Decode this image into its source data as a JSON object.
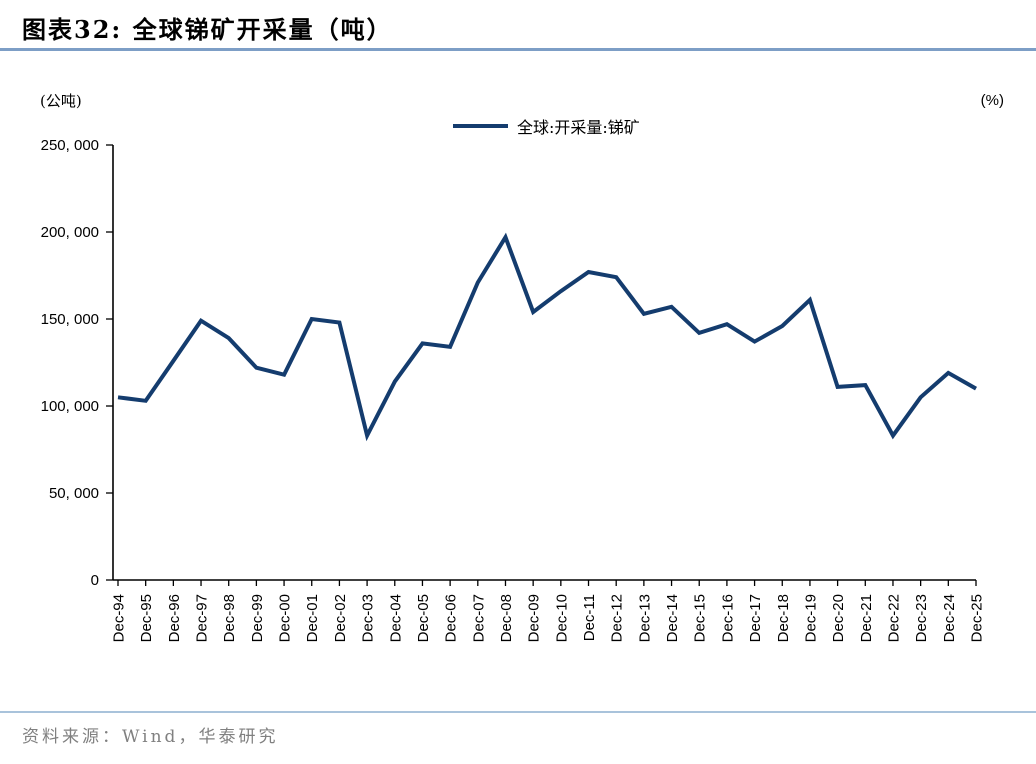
{
  "title": "图表32:  全球锑矿开采量（吨）",
  "axis_left_unit": "(公吨)",
  "axis_right_unit": "(%)",
  "legend_label": "全球:开采量:锑矿",
  "source": "资料来源：Wind，华泰研究",
  "colors": {
    "line": "#143C6E",
    "axis": "#000000",
    "title_rule": "#7D9EC6",
    "footer_rule": "#A9C3DB",
    "source_text": "#808080"
  },
  "chart_data": {
    "type": "line",
    "title": "全球锑矿开采量（吨）",
    "xlabel": "",
    "ylabel": "(公吨)",
    "x": [
      "Dec-94",
      "Dec-95",
      "Dec-96",
      "Dec-97",
      "Dec-98",
      "Dec-99",
      "Dec-00",
      "Dec-01",
      "Dec-02",
      "Dec-03",
      "Dec-04",
      "Dec-05",
      "Dec-06",
      "Dec-07",
      "Dec-08",
      "Dec-09",
      "Dec-10",
      "Dec-11",
      "Dec-12",
      "Dec-13",
      "Dec-14",
      "Dec-15",
      "Dec-16",
      "Dec-17",
      "Dec-18",
      "Dec-19",
      "Dec-20",
      "Dec-21",
      "Dec-22",
      "Dec-23",
      "Dec-24",
      "Dec-25"
    ],
    "series": [
      {
        "name": "全球:开采量:锑矿",
        "values": [
          105000,
          103000,
          126000,
          149000,
          139000,
          122000,
          118000,
          150000,
          148000,
          83000,
          114000,
          136000,
          134000,
          171000,
          197000,
          154000,
          166000,
          177000,
          174000,
          153000,
          157000,
          142000,
          147000,
          137000,
          146000,
          161000,
          111000,
          112000,
          83000,
          105000,
          119000,
          110000
        ]
      }
    ],
    "ylim": [
      0,
      250000
    ],
    "yticks": [
      0,
      50000,
      100000,
      150000,
      200000,
      250000
    ],
    "ytick_labels": [
      "0",
      "50, 000",
      "100, 000",
      "150, 000",
      "200, 000",
      "250, 000"
    ],
    "grid": false,
    "legend_position": "top-center"
  }
}
